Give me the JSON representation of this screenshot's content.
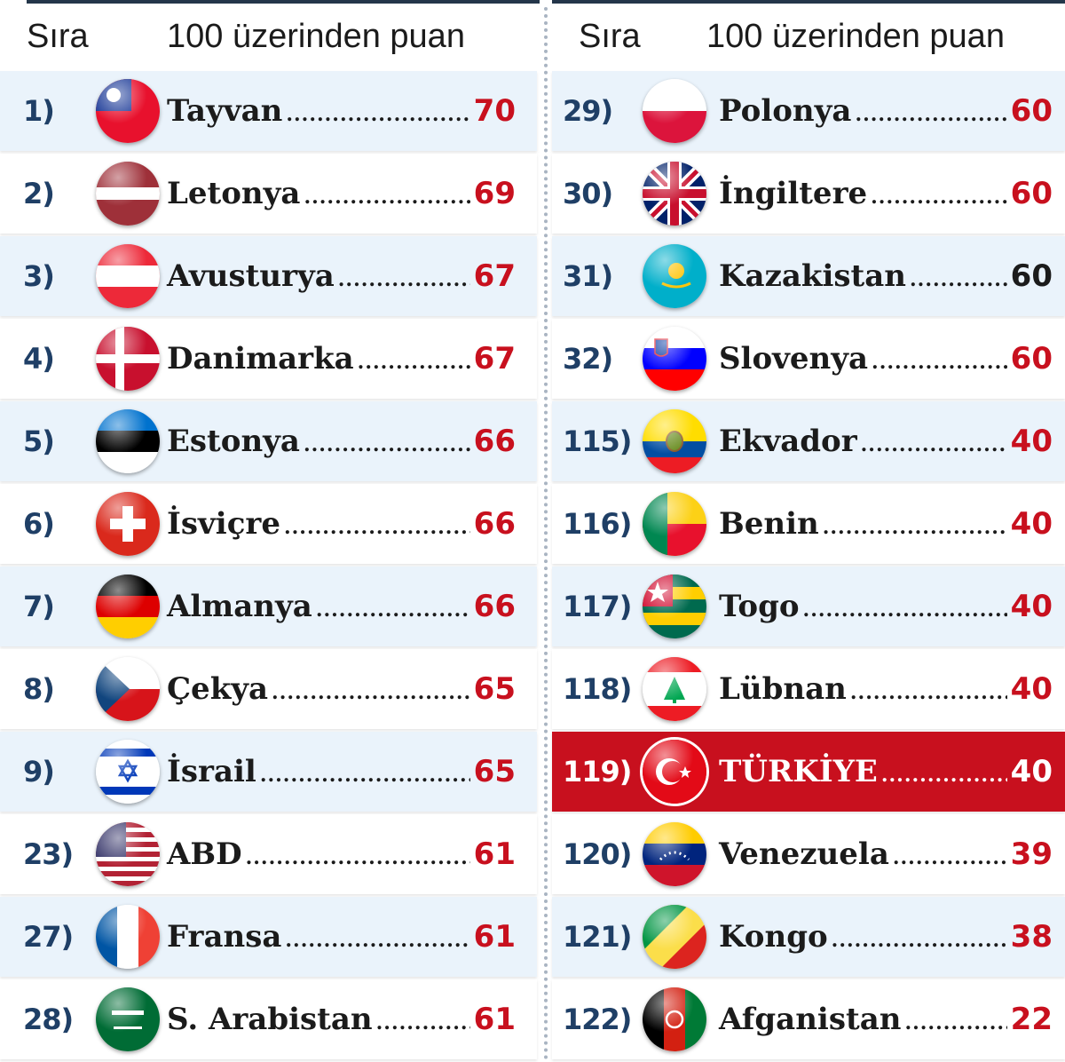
{
  "headers": {
    "left_rank": "Sıra",
    "left_score": "100 üzerinden puan",
    "right_rank": "Sıra",
    "right_score": "100 üzerinden puan"
  },
  "left_rows": [
    {
      "rank": "1)",
      "country": "Tayvan",
      "score": "70",
      "flag": "taiwan-flag"
    },
    {
      "rank": "2)",
      "country": "Letonya",
      "score": "69",
      "flag": "latvia-flag"
    },
    {
      "rank": "3)",
      "country": "Avusturya",
      "score": "67",
      "flag": "austria-flag"
    },
    {
      "rank": "4)",
      "country": "Danimarka",
      "score": "67",
      "flag": "denmark-flag"
    },
    {
      "rank": "5)",
      "country": "Estonya",
      "score": "66",
      "flag": "estonia-flag"
    },
    {
      "rank": "6)",
      "country": "İsviçre",
      "score": "66",
      "flag": "switzerland-flag"
    },
    {
      "rank": "7)",
      "country": "Almanya",
      "score": "66",
      "flag": "germany-flag"
    },
    {
      "rank": "8)",
      "country": "Çekya",
      "score": "65",
      "flag": "czechia-flag"
    },
    {
      "rank": "9)",
      "country": "İsrail",
      "score": "65",
      "flag": "israel-flag"
    },
    {
      "rank": "23)",
      "country": "ABD",
      "score": "61",
      "flag": "usa-flag"
    },
    {
      "rank": "27)",
      "country": "Fransa",
      "score": "61",
      "flag": "france-flag"
    },
    {
      "rank": "28)",
      "country": "S. Arabistan",
      "score": "61",
      "flag": "saudi-arabia-flag"
    }
  ],
  "right_rows": [
    {
      "rank": "29)",
      "country": "Polonya",
      "score": "60",
      "flag": "poland-flag"
    },
    {
      "rank": "30)",
      "country": "İngiltere",
      "score": "60",
      "flag": "uk-flag"
    },
    {
      "rank": "31)",
      "country": "Kazakistan",
      "score": "60",
      "flag": "kazakhstan-flag"
    },
    {
      "rank": "32)",
      "country": "Slovenya",
      "score": "60",
      "flag": "slovenia-flag"
    },
    {
      "rank": "115)",
      "country": "Ekvador",
      "score": "40",
      "flag": "ecuador-flag"
    },
    {
      "rank": "116)",
      "country": "Benin",
      "score": "40",
      "flag": "benin-flag"
    },
    {
      "rank": "117)",
      "country": "Togo",
      "score": "40",
      "flag": "togo-flag"
    },
    {
      "rank": "118)",
      "country": "Lübnan",
      "score": "40",
      "flag": "lebanon-flag"
    },
    {
      "rank": "119)",
      "country": "TÜRKİYE",
      "score": "40",
      "flag": "turkey-flag"
    },
    {
      "rank": "120)",
      "country": "Venezuela",
      "score": "39",
      "flag": "venezuela-flag"
    },
    {
      "rank": "121)",
      "country": "Kongo",
      "score": "38",
      "flag": "congo-flag"
    },
    {
      "rank": "122)",
      "country": "Afganistan",
      "score": "22",
      "flag": "afghanistan-flag"
    }
  ],
  "colors": {
    "accent_red": "#c8101e",
    "rank_blue": "#1f3f66",
    "row_alt": "#eaf3fb",
    "highlight_row": "#c8101e"
  }
}
